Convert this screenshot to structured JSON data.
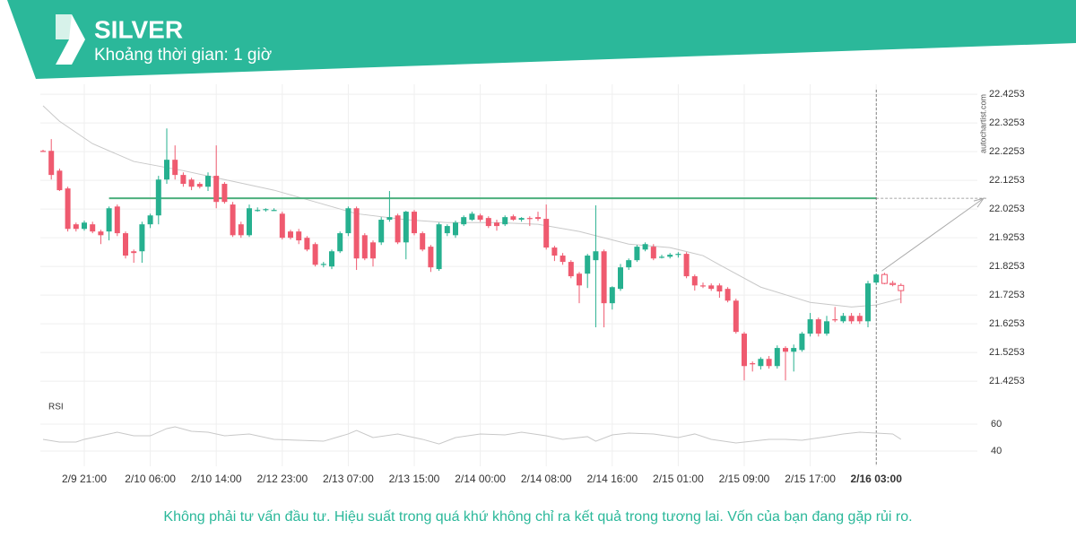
{
  "header": {
    "title": "SILVER",
    "subtitle": "Khoảng thời gian: 1 giờ"
  },
  "chart_data": [
    {
      "type": "candlestick",
      "watermark": "autochartist.com",
      "up_color": "#26b08f",
      "down_color": "#ef5a6f",
      "hollow_from": 102,
      "ylim": [
        21.36,
        22.46
      ],
      "yticks": [
        21.4253,
        21.5253,
        21.6253,
        21.7253,
        21.8253,
        21.9253,
        22.0253,
        22.1253,
        22.2253,
        22.3253,
        22.4253
      ],
      "xticks": [
        {
          "value": 5,
          "label": "2/9 21:00"
        },
        {
          "value": 13,
          "label": "2/10 06:00"
        },
        {
          "value": 21,
          "label": "2/10 14:00"
        },
        {
          "value": 29,
          "label": "2/12 23:00"
        },
        {
          "value": 37,
          "label": "2/13 07:00"
        },
        {
          "value": 45,
          "label": "2/13 15:00"
        },
        {
          "value": 53,
          "label": "2/14 00:00"
        },
        {
          "value": 61,
          "label": "2/14 08:00"
        },
        {
          "value": 69,
          "label": "2/14 16:00"
        },
        {
          "value": 77,
          "label": "2/15 01:00"
        },
        {
          "value": 85,
          "label": "2/15 09:00"
        },
        {
          "value": 93,
          "label": "2/15 17:00"
        },
        {
          "value": 101,
          "label": "2/16 03:00"
        }
      ],
      "crosshair": 101,
      "level": 22.0628,
      "level_from": 8,
      "level_color": "#4caf7d",
      "candles": [
        [
          22.228,
          22.232,
          22.224,
          22.226
        ],
        [
          22.228,
          22.269,
          22.128,
          22.144
        ],
        [
          22.159,
          22.166,
          22.088,
          22.091
        ],
        [
          22.097,
          22.103,
          21.947,
          21.956
        ],
        [
          21.972,
          21.978,
          21.947,
          21.956
        ],
        [
          21.956,
          21.985,
          21.95,
          21.978
        ],
        [
          21.972,
          21.981,
          21.941,
          21.947
        ],
        [
          21.947,
          21.953,
          21.903,
          21.934
        ],
        [
          21.947,
          22.034,
          21.916,
          22.028
        ],
        [
          22.034,
          22.041,
          21.931,
          21.941
        ],
        [
          21.941,
          21.947,
          21.853,
          21.863
        ],
        [
          21.878,
          21.884,
          21.838,
          21.872
        ],
        [
          21.878,
          21.981,
          21.838,
          21.972
        ],
        [
          21.972,
          22.009,
          21.959,
          22.003
        ],
        [
          22.003,
          22.141,
          21.972,
          22.128
        ],
        [
          22.128,
          22.306,
          22.113,
          22.197
        ],
        [
          22.197,
          22.247,
          22.128,
          22.144
        ],
        [
          22.144,
          22.153,
          22.103,
          22.113
        ],
        [
          22.128,
          22.134,
          22.091,
          22.103
        ],
        [
          22.113,
          22.119,
          22.097,
          22.103
        ],
        [
          22.103,
          22.153,
          22.088,
          22.141
        ],
        [
          22.141,
          22.247,
          22.028,
          22.05
        ],
        [
          22.113,
          22.119,
          22.044,
          22.05
        ],
        [
          22.041,
          22.05,
          21.928,
          21.934
        ],
        [
          21.972,
          21.981,
          21.925,
          21.934
        ],
        [
          21.934,
          22.041,
          21.928,
          22.028
        ],
        [
          22.022,
          22.031,
          22.016,
          22.022
        ],
        [
          22.022,
          22.028,
          22.016,
          22.025
        ],
        [
          22.022,
          22.028,
          22.019,
          22.022
        ],
        [
          22.009,
          22.016,
          21.919,
          21.925
        ],
        [
          21.947,
          21.953,
          21.919,
          21.925
        ],
        [
          21.947,
          21.956,
          21.903,
          21.916
        ],
        [
          21.925,
          21.931,
          21.878,
          21.884
        ],
        [
          21.903,
          21.909,
          21.825,
          21.831
        ],
        [
          21.831,
          21.841,
          21.822,
          21.834
        ],
        [
          21.825,
          21.884,
          21.816,
          21.878
        ],
        [
          21.878,
          21.947,
          21.872,
          21.941
        ],
        [
          21.941,
          22.034,
          21.931,
          22.028
        ],
        [
          22.028,
          22.034,
          21.813,
          21.853
        ],
        [
          21.934,
          21.941,
          21.847,
          21.853
        ],
        [
          21.909,
          21.916,
          21.825,
          21.853
        ],
        [
          21.909,
          21.997,
          21.9,
          21.988
        ],
        [
          21.988,
          22.088,
          21.981,
          21.997
        ],
        [
          22.003,
          22.009,
          21.903,
          21.909
        ],
        [
          21.909,
          22.019,
          21.85,
          22.016
        ],
        [
          22.016,
          22.022,
          21.934,
          21.941
        ],
        [
          21.941,
          21.947,
          21.878,
          21.884
        ],
        [
          21.894,
          21.9,
          21.806,
          21.822
        ],
        [
          21.816,
          21.978,
          21.81,
          21.972
        ],
        [
          21.941,
          21.972,
          21.931,
          21.966
        ],
        [
          21.934,
          21.985,
          21.925,
          21.978
        ],
        [
          21.972,
          22.003,
          21.966,
          21.997
        ],
        [
          21.988,
          22.016,
          21.984,
          22.009
        ],
        [
          22.003,
          22.009,
          21.981,
          21.988
        ],
        [
          21.994,
          22.0,
          21.959,
          21.966
        ],
        [
          21.978,
          21.988,
          21.95,
          21.966
        ],
        [
          21.972,
          22.003,
          21.966,
          21.997
        ],
        [
          22.0,
          22.006,
          21.984,
          21.988
        ],
        [
          21.988,
          21.997,
          21.981,
          21.994
        ],
        [
          21.994,
          22.0,
          21.966,
          21.991
        ],
        [
          21.997,
          22.016,
          21.984,
          21.991
        ],
        [
          21.991,
          22.041,
          21.884,
          21.891
        ],
        [
          21.891,
          21.897,
          21.844,
          21.863
        ],
        [
          21.863,
          21.872,
          21.831,
          21.841
        ],
        [
          21.841,
          21.847,
          21.784,
          21.791
        ],
        [
          21.8,
          21.806,
          21.697,
          21.759
        ],
        [
          21.8,
          21.869,
          21.75,
          21.863
        ],
        [
          21.847,
          22.038,
          21.613,
          21.878
        ],
        [
          21.878,
          21.884,
          21.613,
          21.697
        ],
        [
          21.697,
          21.756,
          21.675,
          21.753
        ],
        [
          21.747,
          21.834,
          21.74,
          21.822
        ],
        [
          21.822,
          21.853,
          21.813,
          21.847
        ],
        [
          21.847,
          21.9,
          21.841,
          21.894
        ],
        [
          21.884,
          21.909,
          21.878,
          21.903
        ],
        [
          21.894,
          21.903,
          21.847,
          21.853
        ],
        [
          21.859,
          21.866,
          21.853,
          21.859
        ],
        [
          21.859,
          21.872,
          21.853,
          21.866
        ],
        [
          21.866,
          21.875,
          21.856,
          21.869
        ],
        [
          21.869,
          21.875,
          21.784,
          21.791
        ],
        [
          21.791,
          21.797,
          21.741,
          21.759
        ],
        [
          21.759,
          21.769,
          21.75,
          21.756
        ],
        [
          21.759,
          21.766,
          21.74,
          21.747
        ],
        [
          21.759,
          21.766,
          21.716,
          21.738
        ],
        [
          21.747,
          21.753,
          21.7,
          21.706
        ],
        [
          21.706,
          21.713,
          21.591,
          21.597
        ],
        [
          21.591,
          21.597,
          21.428,
          21.478
        ],
        [
          21.488,
          21.494,
          21.459,
          21.484
        ],
        [
          21.478,
          21.509,
          21.466,
          21.503
        ],
        [
          21.503,
          21.513,
          21.469,
          21.478
        ],
        [
          21.478,
          21.55,
          21.469,
          21.541
        ],
        [
          21.541,
          21.547,
          21.428,
          21.528
        ],
        [
          21.528,
          21.553,
          21.459,
          21.541
        ],
        [
          21.534,
          21.597,
          21.528,
          21.591
        ],
        [
          21.591,
          21.663,
          21.581,
          21.641
        ],
        [
          21.641,
          21.647,
          21.581,
          21.591
        ],
        [
          21.591,
          21.653,
          21.584,
          21.634
        ],
        [
          21.641,
          21.684,
          21.631,
          21.638
        ],
        [
          21.634,
          21.663,
          21.628,
          21.653
        ],
        [
          21.653,
          21.663,
          21.625,
          21.634
        ],
        [
          21.653,
          21.663,
          21.625,
          21.634
        ],
        [
          21.634,
          21.775,
          21.613,
          21.766
        ],
        [
          21.769,
          21.8,
          21.763,
          21.797
        ],
        [
          21.797,
          21.803,
          21.763,
          21.766
        ],
        [
          21.766,
          21.775,
          21.756,
          21.763
        ],
        [
          21.759,
          21.766,
          21.697,
          21.741
        ]
      ],
      "overlay": {
        "color": "#c8c8c8",
        "x": [
          0,
          2,
          6,
          11,
          17,
          22,
          28,
          33,
          38,
          44,
          49,
          55,
          60,
          65,
          71,
          76,
          80,
          82,
          87,
          93,
          98,
          101,
          104
        ],
        "values": [
          22.385,
          22.331,
          22.253,
          22.191,
          22.159,
          22.128,
          22.091,
          22.05,
          22.009,
          21.988,
          21.978,
          21.978,
          21.972,
          21.947,
          21.903,
          21.891,
          21.863,
          21.831,
          21.753,
          21.7,
          21.684,
          21.691,
          21.713
        ]
      }
    },
    {
      "type": "line",
      "title": "RSI",
      "color": "#c8c8c8",
      "ylim": [
        32,
        72
      ],
      "yticks": [
        40,
        60
      ],
      "x": [
        0,
        2,
        4,
        5,
        8,
        9,
        11,
        13,
        15,
        16,
        18,
        20,
        22,
        25,
        28,
        31,
        34,
        37,
        38,
        40,
        43,
        46,
        48,
        50,
        53,
        56,
        58,
        61,
        63,
        66,
        67,
        69,
        71,
        74,
        77,
        79,
        81,
        84,
        86,
        88,
        90,
        92,
        95,
        97,
        99,
        101,
        103,
        104
      ],
      "values": [
        48.7,
        46.7,
        46.7,
        48.7,
        52.7,
        54,
        51.3,
        51.3,
        56.7,
        58,
        54.7,
        54,
        51.3,
        52.7,
        48.7,
        48,
        47.3,
        52.7,
        55.3,
        50,
        52.7,
        48.7,
        45.3,
        50,
        52.7,
        52,
        54,
        51.3,
        48.7,
        50.7,
        47.3,
        52,
        53.3,
        52.7,
        50,
        52.7,
        48.7,
        46,
        47.3,
        48.7,
        48.7,
        48,
        50.7,
        52.7,
        54,
        53.3,
        52.7,
        48.7
      ]
    }
  ],
  "footer": {
    "disclaimer": "Không phải tư vấn đầu tư. Hiệu suất trong quá khứ không chỉ ra kết quả trong tương lai. Vốn của bạn đang gặp rủi ro."
  }
}
